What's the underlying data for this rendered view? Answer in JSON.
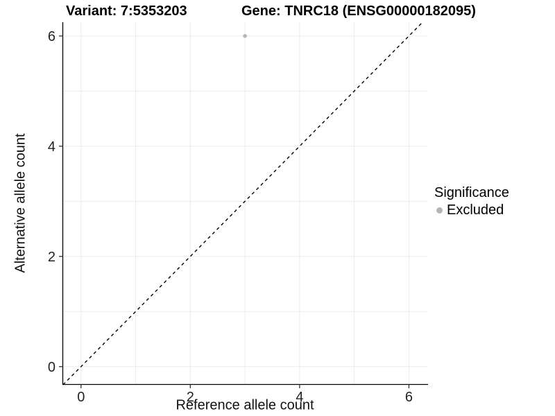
{
  "titles": {
    "left": "Variant: 7:5353203",
    "right": "Gene: TNRC18 (ENSG00000182095)"
  },
  "axes": {
    "x_label": "Reference allele count",
    "y_label": "Alternative allele count"
  },
  "legend": {
    "title": "Significance",
    "items": [
      {
        "label": "Excluded",
        "color": "#b5b5b5",
        "marker": "circle-icon"
      }
    ]
  },
  "colors": {
    "background": "#ffffff",
    "gridline": "#ebebeb",
    "axis_line": "#000000",
    "tick": "#333333",
    "point": "#b5b5b5",
    "reference_line": "#000000"
  },
  "chart_data": {
    "type": "scatter",
    "title": "Variant: 7:5353203   Gene: TNRC18 (ENSG00000182095)",
    "xlabel": "Reference allele count",
    "ylabel": "Alternative allele count",
    "xlim": [
      -0.34,
      6.35
    ],
    "ylim": [
      -0.33,
      6.25
    ],
    "x_ticks": [
      0,
      2,
      4,
      6
    ],
    "y_ticks": [
      0,
      2,
      4,
      6
    ],
    "gridlines_x": [
      0,
      1,
      2,
      3,
      4,
      5,
      6
    ],
    "gridlines_y": [
      0,
      1,
      2,
      3,
      4,
      5,
      6
    ],
    "grid": "on",
    "legend_position": "right",
    "series": [
      {
        "name": "Excluded",
        "color": "#b5b5b5",
        "points": [
          {
            "x": 3,
            "y": 6
          }
        ]
      }
    ],
    "reference_line": {
      "type": "identity",
      "slope": 1,
      "intercept": 0,
      "style": "dashed",
      "color": "#000000"
    }
  }
}
